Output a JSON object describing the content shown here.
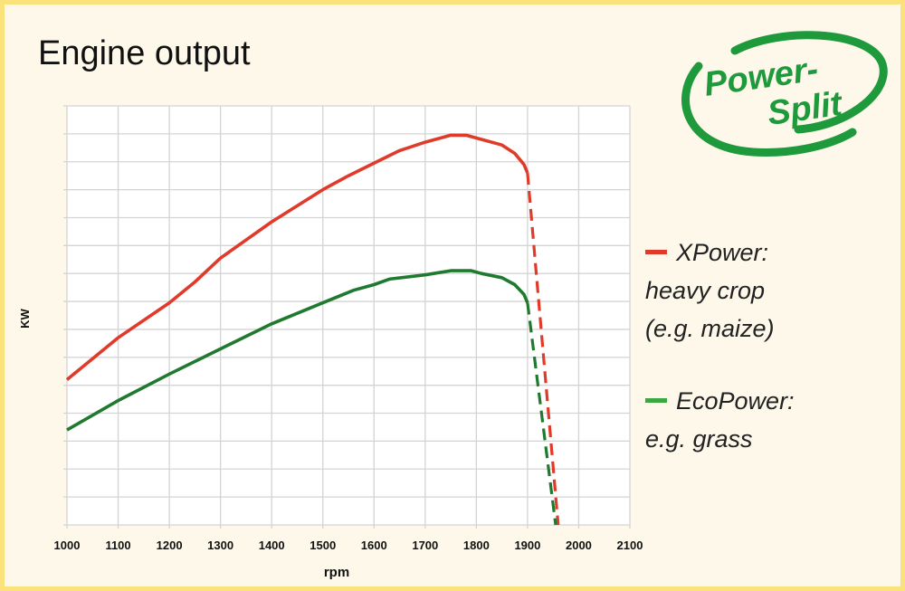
{
  "title": "Engine output",
  "logo": {
    "text_line1": "Power-",
    "text_line2": "Split",
    "color": "#1e9a3c"
  },
  "legend": [
    {
      "label": "XPower:",
      "desc": [
        "heavy crop",
        "(e.g. maize)"
      ],
      "color": "#e03a2a"
    },
    {
      "label": "EcoPower:",
      "desc": [
        "e.g. grass"
      ],
      "color": "#2a9a3a"
    }
  ],
  "chart_data": {
    "type": "line",
    "title": "Engine output",
    "xlabel": "rpm",
    "ylabel": "KW",
    "xlim": [
      1000,
      2100
    ],
    "ylim": [
      0,
      15
    ],
    "xticks": [
      "1000",
      "1100",
      "1200",
      "1300",
      "1400",
      "1500",
      "1600",
      "1700",
      "1800",
      "1900",
      "2000",
      "2100"
    ],
    "grid": true,
    "series": [
      {
        "name": "XPower",
        "color": "#e03a2a",
        "solid": [
          [
            1000,
            5.2
          ],
          [
            1100,
            6.7
          ],
          [
            1200,
            7.95
          ],
          [
            1250,
            8.7
          ],
          [
            1300,
            9.55
          ],
          [
            1400,
            10.85
          ],
          [
            1500,
            12.0
          ],
          [
            1550,
            12.5
          ],
          [
            1600,
            12.95
          ],
          [
            1650,
            13.4
          ],
          [
            1700,
            13.7
          ],
          [
            1750,
            13.95
          ],
          [
            1780,
            13.95
          ],
          [
            1800,
            13.85
          ],
          [
            1850,
            13.6
          ],
          [
            1875,
            13.3
          ],
          [
            1893,
            12.9
          ],
          [
            1900,
            12.6
          ]
        ],
        "dashed": [
          [
            1900,
            12.6
          ],
          [
            1960,
            0
          ]
        ]
      },
      {
        "name": "EcoPower",
        "color": "#1f7a30",
        "solid": [
          [
            1000,
            3.4
          ],
          [
            1100,
            4.45
          ],
          [
            1200,
            5.4
          ],
          [
            1300,
            6.3
          ],
          [
            1400,
            7.2
          ],
          [
            1500,
            7.95
          ],
          [
            1560,
            8.4
          ],
          [
            1600,
            8.6
          ],
          [
            1630,
            8.8
          ],
          [
            1700,
            8.95
          ],
          [
            1750,
            9.1
          ],
          [
            1790,
            9.1
          ],
          [
            1810,
            9.0
          ],
          [
            1850,
            8.85
          ],
          [
            1875,
            8.6
          ],
          [
            1893,
            8.25
          ],
          [
            1900,
            7.95
          ]
        ],
        "dashed": [
          [
            1900,
            7.95
          ],
          [
            1955,
            0
          ]
        ]
      }
    ]
  }
}
